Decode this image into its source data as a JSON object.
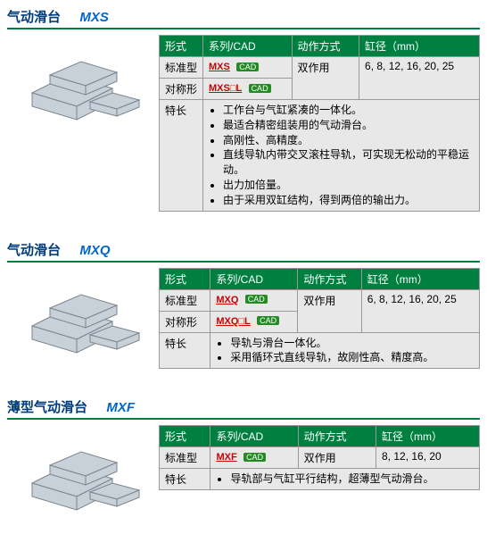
{
  "colors": {
    "header_bg": "#008040",
    "header_text": "#ffffff",
    "cell_bg": "#e8e8e8",
    "border": "#999999",
    "title_cn": "#003d7a",
    "title_code": "#0066cc",
    "series_link": "#cc0000",
    "cad_badge_bg": "#228b22",
    "underline": "#008040"
  },
  "table_headers": {
    "col1": "形式",
    "col2": "系列/CAD",
    "col3": "动作方式",
    "col4": "缸径（mm）"
  },
  "cad_label": "CAD",
  "products": [
    {
      "title_cn": "气动滑台",
      "title_code": "MXS",
      "rows": [
        {
          "type": "标准型",
          "series": "MXS"
        },
        {
          "type": "对称形",
          "series": "MXS□L"
        }
      ],
      "action": "双作用",
      "bore": "6, 8, 12, 16, 20, 25",
      "features_label": "特长",
      "features": [
        "工作台与气缸紧凑的一体化。",
        "最适合精密组装用的气动滑台。",
        "高刚性、高精度。",
        "直线导轨内带交叉滚柱导轨，可实现无松动的平稳运动。",
        "出力加倍量。",
        "由于采用双缸结构，得到两倍的输出力。"
      ]
    },
    {
      "title_cn": "气动滑台",
      "title_code": "MXQ",
      "rows": [
        {
          "type": "标准型",
          "series": "MXQ"
        },
        {
          "type": "对称形",
          "series": "MXQ□L"
        }
      ],
      "action": "双作用",
      "bore": "6, 8, 12, 16, 20, 25",
      "features_label": "特长",
      "features": [
        "导轨与滑台一体化。",
        "采用循环式直线导轨，故刚性高、精度高。"
      ]
    },
    {
      "title_cn": "薄型气动滑台",
      "title_code": "MXF",
      "rows": [
        {
          "type": "标准型",
          "series": "MXF"
        }
      ],
      "action": "双作用",
      "bore": "8, 12, 16, 20",
      "features_label": "特长",
      "features": [
        "导轨部与气缸平行结构，超薄型气动滑台。"
      ]
    }
  ]
}
